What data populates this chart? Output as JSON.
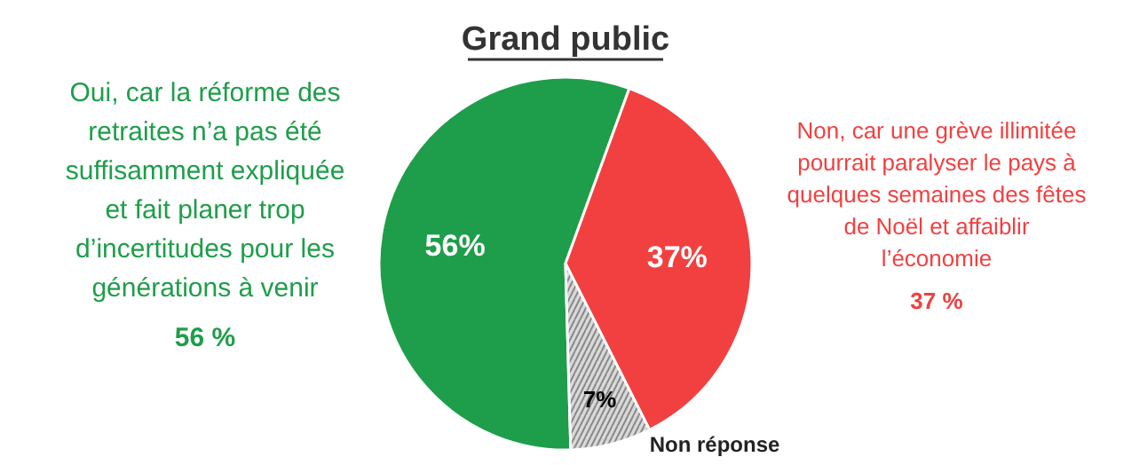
{
  "chart_data": {
    "type": "pie",
    "title": "Grand public",
    "categories": [
      "Oui, car la réforme des\nretraites n’a pas été\nsuffisamment expliquée\net fait planer trop\nd’incertitudes pour les\ngénérations à venir\n56 %",
      "Non, car une grève illimitée\npourrait paralyser le pays à\nquelques semaines des fêtes\nde Noël et affaiblir\nl’économie\n37 %",
      "Non réponse"
    ],
    "values": [
      56,
      37,
      7
    ],
    "colors": [
      "#1e9e4a",
      "#f24040",
      "#d9d9d9"
    ],
    "value_labels": [
      "56%",
      "37%",
      "7%"
    ]
  }
}
